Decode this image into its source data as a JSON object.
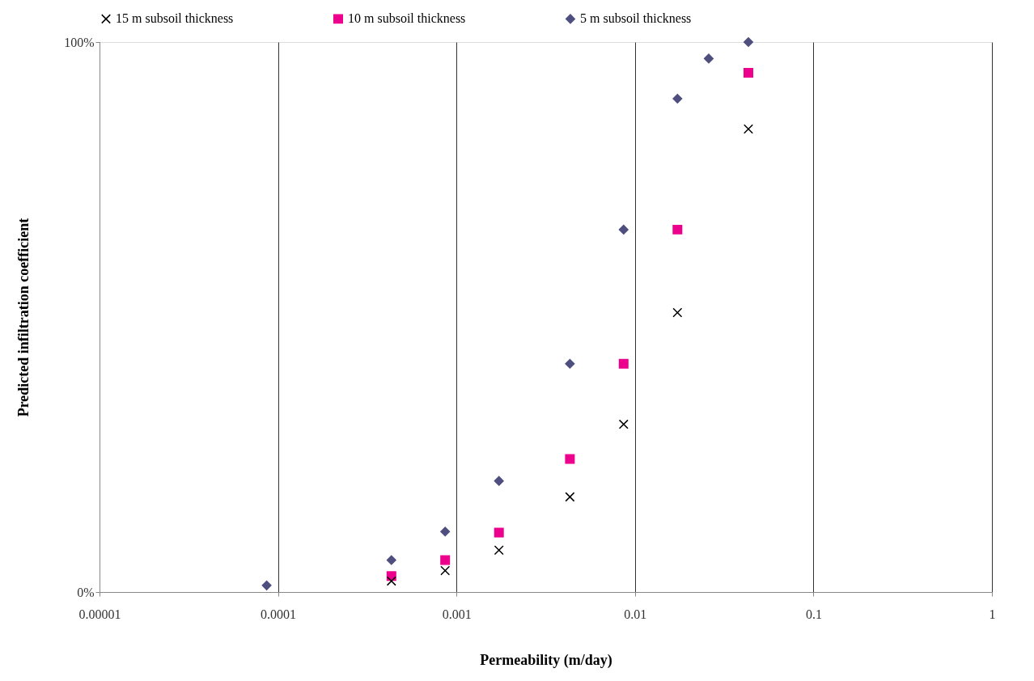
{
  "chart_data": {
    "type": "scatter",
    "xlabel": "Permeability (m/day)",
    "ylabel": "Predicted infiltration coefficient",
    "series": [
      {
        "name": "15 m subsoil thickness",
        "color": "#000000",
        "marker": "cross",
        "x": [
          0.000432,
          0.000864,
          0.00173,
          0.00432,
          0.00864,
          0.0173,
          0.0432
        ],
        "values": [
          2,
          3.9,
          7.6,
          17.3,
          30.5,
          50.8,
          84.2
        ]
      },
      {
        "name": "10 m subsoil thickness",
        "color": "#ec008c",
        "marker": "square",
        "x": [
          0.000432,
          0.000864,
          0.00173,
          0.00432,
          0.00864,
          0.0173,
          0.0432
        ],
        "values": [
          2.9,
          5.8,
          10.8,
          24.2,
          41.5,
          65.9,
          94.4
        ]
      },
      {
        "name": "5 m subsoil thickness",
        "color": "#4f4f7f",
        "marker": "diamond",
        "x": [
          8.64e-05,
          0.000432,
          0.000864,
          0.00173,
          0.00432,
          0.00864,
          0.0173,
          0.0259,
          0.0432
        ],
        "values": [
          1.2,
          5.8,
          11,
          20.2,
          41.5,
          65.9,
          89.7,
          97,
          100
        ]
      }
    ],
    "log": "x",
    "xlim": [
      1e-05,
      1
    ],
    "xticks": [
      {
        "value": 1e-05,
        "label": "0.00001"
      },
      0.0001,
      0.001,
      0.01,
      0.1,
      1
    ],
    "ylim": [
      0,
      100
    ],
    "yticks": [
      {
        "value": 0,
        "label": "0%"
      },
      {
        "value": 100,
        "label": "100%"
      }
    ],
    "grid": "x",
    "legend": "top"
  }
}
